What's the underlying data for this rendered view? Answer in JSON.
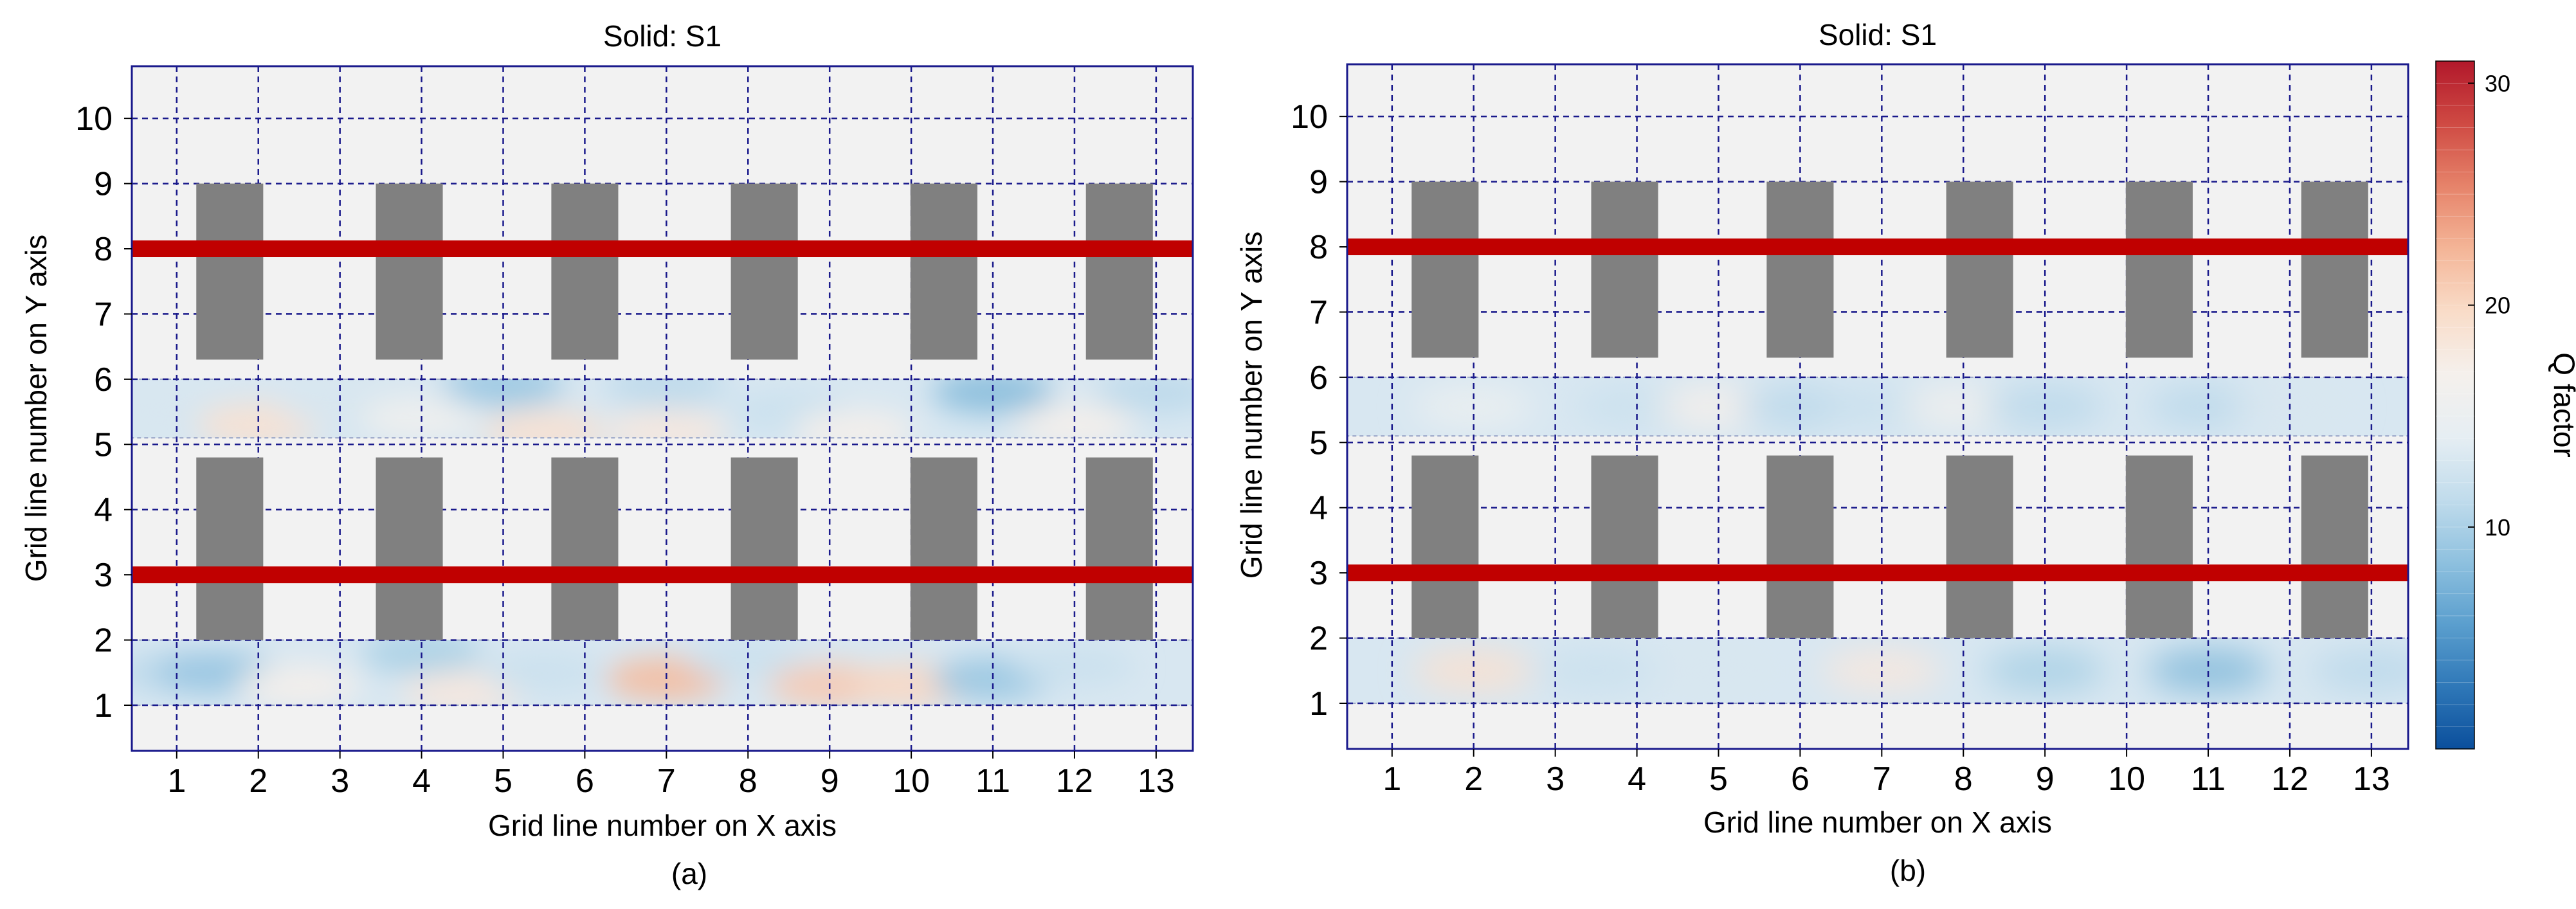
{
  "figure": {
    "panels": [
      {
        "title": "Solid: S1",
        "caption": "(a)"
      },
      {
        "title": "Solid: S1",
        "caption": "(b)"
      }
    ],
    "colorbar": {
      "label": "Q factor",
      "ticks": [
        "10",
        "20",
        "30"
      ],
      "range": [
        0,
        31
      ],
      "colors": [
        "#0b4f9c",
        "#2f78b8",
        "#5b9fce",
        "#8fc1df",
        "#c1dcec",
        "#e6eef3",
        "#f5f0ec",
        "#f9dcc8",
        "#f4b597",
        "#e6836a",
        "#cf4a43",
        "#b2182b"
      ]
    }
  },
  "chart_data": [
    {
      "type": "heatmap",
      "title": "Solid: S1",
      "xlabel": "Grid line number on X axis",
      "ylabel": "Grid line number on Y axis",
      "xticks": [
        "1",
        "2",
        "3",
        "4",
        "5",
        "6",
        "7",
        "8",
        "9",
        "10",
        "11",
        "12",
        "13"
      ],
      "yticks": [
        "1",
        "2",
        "3",
        "4",
        "5",
        "6",
        "7",
        "8",
        "9",
        "10"
      ],
      "xlim": [
        0.45,
        13.45
      ],
      "ylim": [
        0.3,
        10.8
      ],
      "grid": true,
      "colors": {
        "column": "#808080",
        "beam": "#c00000",
        "background": "#f2f2f2",
        "gridline": "#1a1a8c",
        "frame": "#1a1a8c"
      },
      "beams_y": [
        3.0,
        8.0
      ],
      "columns_x": [
        1.65,
        3.85,
        6.0,
        8.2,
        10.4,
        12.55
      ],
      "column_y_ranges": [
        [
          2.0,
          4.8
        ],
        [
          6.3,
          9.0
        ]
      ],
      "slab_bands_y": [
        [
          1.0,
          2.0
        ],
        [
          5.1,
          6.0
        ]
      ],
      "q_field": {
        "band_5_6": [
          {
            "x": 1.0,
            "y": 5.5,
            "q": 13
          },
          {
            "x": 2.0,
            "y": 5.3,
            "q": 19
          },
          {
            "x": 3.0,
            "y": 5.6,
            "q": 13
          },
          {
            "x": 4.0,
            "y": 5.4,
            "q": 16
          },
          {
            "x": 5.0,
            "y": 5.9,
            "q": 9
          },
          {
            "x": 5.5,
            "y": 5.2,
            "q": 19
          },
          {
            "x": 7.0,
            "y": 5.2,
            "q": 18
          },
          {
            "x": 7.0,
            "y": 5.9,
            "q": 11
          },
          {
            "x": 8.5,
            "y": 5.5,
            "q": 12
          },
          {
            "x": 9.3,
            "y": 5.2,
            "q": 17
          },
          {
            "x": 11.0,
            "y": 5.8,
            "q": 8
          },
          {
            "x": 12.0,
            "y": 5.3,
            "q": 17
          },
          {
            "x": 13.0,
            "y": 5.8,
            "q": 11
          }
        ],
        "band_1_2": [
          {
            "x": 1.0,
            "y": 1.5,
            "q": 11
          },
          {
            "x": 1.5,
            "y": 1.5,
            "q": 9
          },
          {
            "x": 2.5,
            "y": 1.3,
            "q": 17
          },
          {
            "x": 4.0,
            "y": 1.8,
            "q": 10
          },
          {
            "x": 4.5,
            "y": 1.2,
            "q": 18
          },
          {
            "x": 5.5,
            "y": 1.5,
            "q": 12
          },
          {
            "x": 7.0,
            "y": 1.4,
            "q": 22
          },
          {
            "x": 8.0,
            "y": 1.7,
            "q": 12
          },
          {
            "x": 9.0,
            "y": 1.3,
            "q": 21
          },
          {
            "x": 10.0,
            "y": 1.3,
            "q": 20
          },
          {
            "x": 11.0,
            "y": 1.4,
            "q": 9
          },
          {
            "x": 12.0,
            "y": 1.6,
            "q": 12
          }
        ]
      }
    },
    {
      "type": "heatmap",
      "title": "Solid: S1",
      "xlabel": "Grid line number on X axis",
      "ylabel": "Grid line number on Y axis",
      "xticks": [
        "1",
        "2",
        "3",
        "4",
        "5",
        "6",
        "7",
        "8",
        "9",
        "10",
        "11",
        "12",
        "13"
      ],
      "yticks": [
        "1",
        "2",
        "3",
        "4",
        "5",
        "6",
        "7",
        "8",
        "9",
        "10"
      ],
      "xlim": [
        0.45,
        13.45
      ],
      "ylim": [
        0.3,
        10.8
      ],
      "grid": true,
      "colors": {
        "column": "#808080",
        "beam": "#c00000",
        "background": "#f2f2f2",
        "gridline": "#1a1a8c",
        "frame": "#1a1a8c"
      },
      "beams_y": [
        3.0,
        8.0
      ],
      "columns_x": [
        1.65,
        3.85,
        6.0,
        8.2,
        10.4,
        12.55
      ],
      "column_y_ranges": [
        [
          2.0,
          4.8
        ],
        [
          6.3,
          9.0
        ]
      ],
      "slab_bands_y": [
        [
          1.0,
          2.0
        ],
        [
          5.1,
          6.0
        ]
      ],
      "q_field": {
        "band_5_6": [
          {
            "x": 2.0,
            "y": 5.55,
            "q": 15
          },
          {
            "x": 4.0,
            "y": 5.55,
            "q": 12
          },
          {
            "x": 5.0,
            "y": 5.55,
            "q": 17
          },
          {
            "x": 6.0,
            "y": 5.55,
            "q": 11
          },
          {
            "x": 7.0,
            "y": 5.55,
            "q": 12
          },
          {
            "x": 8.0,
            "y": 5.55,
            "q": 16
          },
          {
            "x": 9.0,
            "y": 5.55,
            "q": 11
          },
          {
            "x": 11.0,
            "y": 5.55,
            "q": 11
          },
          {
            "x": 12.0,
            "y": 5.55,
            "q": 13
          }
        ],
        "band_1_2": [
          {
            "x": 2.0,
            "y": 1.5,
            "q": 19
          },
          {
            "x": 3.5,
            "y": 1.5,
            "q": 12
          },
          {
            "x": 5.0,
            "y": 1.5,
            "q": 13
          },
          {
            "x": 7.0,
            "y": 1.5,
            "q": 18
          },
          {
            "x": 9.0,
            "y": 1.5,
            "q": 10
          },
          {
            "x": 11.0,
            "y": 1.5,
            "q": 8
          },
          {
            "x": 13.0,
            "y": 1.5,
            "q": 11
          }
        ]
      }
    }
  ]
}
